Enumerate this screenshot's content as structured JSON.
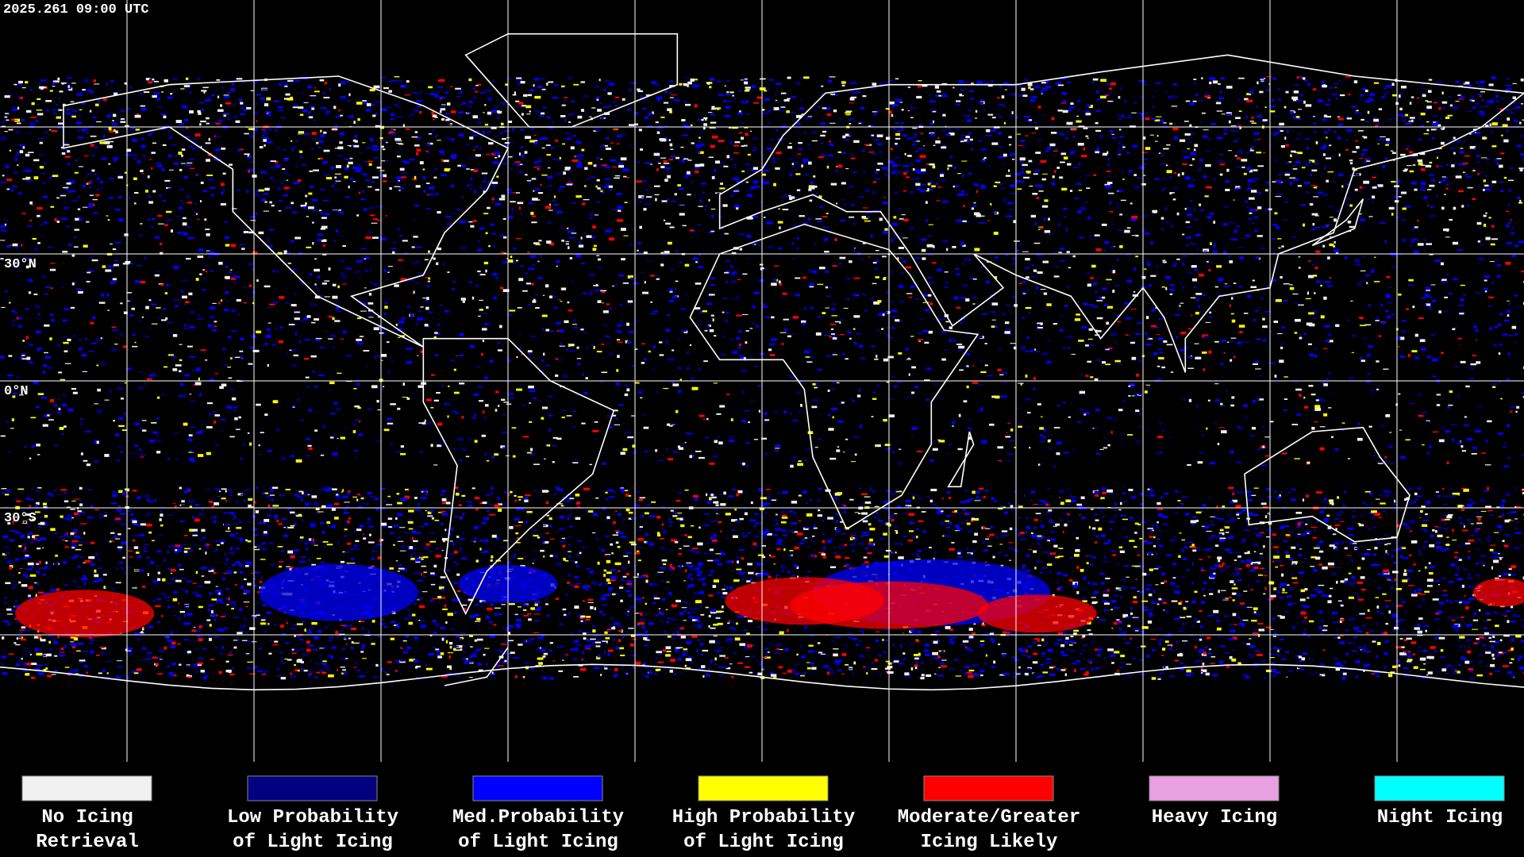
{
  "timestamp": "2025.261 09:00 UTC",
  "latitude_labels": [
    "30°N",
    "0°N",
    "30°S"
  ],
  "legend": [
    {
      "label": [
        "No Icing",
        "Retrieval"
      ],
      "color": "#f0f0f0"
    },
    {
      "label": [
        "Low Probability",
        "of Light Icing"
      ],
      "color": "#000080"
    },
    {
      "label": [
        "Med.Probability",
        "of Light Icing"
      ],
      "color": "#0000ff"
    },
    {
      "label": [
        "High Probability",
        "of Light Icing"
      ],
      "color": "#ffff00"
    },
    {
      "label": [
        "Moderate/Greater",
        "Icing Likely"
      ],
      "color": "#ff0000"
    },
    {
      "label": [
        "Heavy Icing"
      ],
      "color": "#e8a0e0"
    },
    {
      "label": [
        "Night Icing"
      ],
      "color": "#00ffff"
    }
  ]
}
